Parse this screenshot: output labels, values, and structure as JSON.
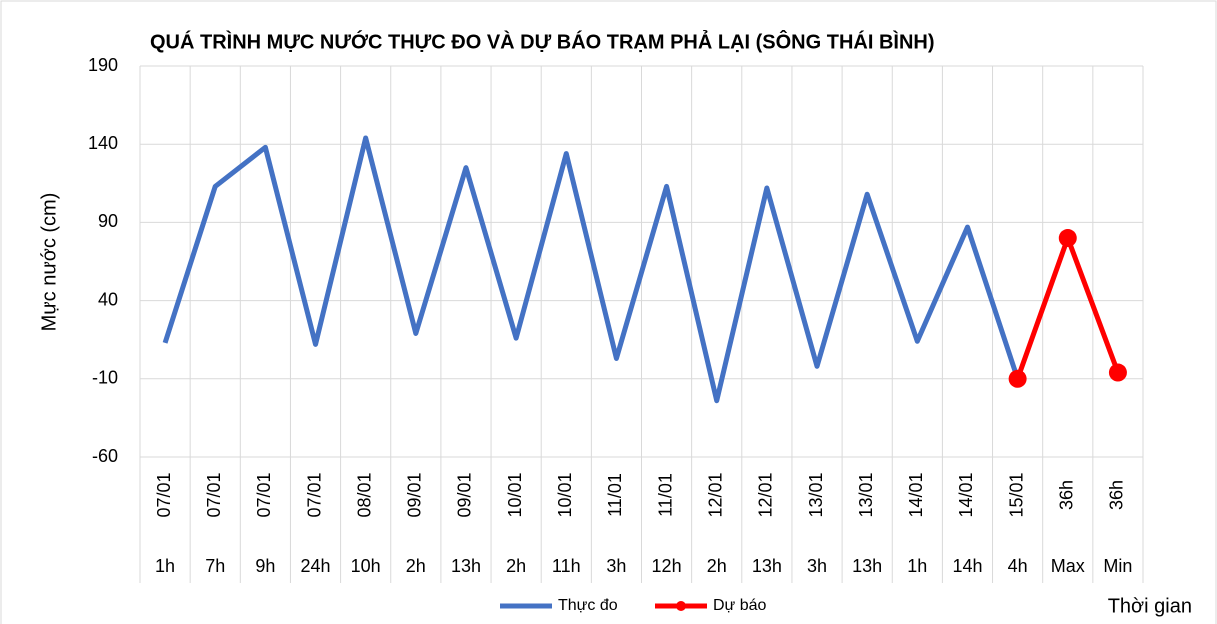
{
  "chart_data": {
    "type": "line",
    "title": "QUÁ TRÌNH MỰC NƯỚC THỰC ĐO VÀ DỰ BÁO TRẠM PHẢ LẠI (SÔNG THÁI BÌNH)",
    "y_label": "Mực nước (cm)",
    "x_label": "Thời gian",
    "categories": [
      {
        "date": "07/01",
        "time": "1h"
      },
      {
        "date": "07/01",
        "time": "7h"
      },
      {
        "date": "07/01",
        "time": "9h"
      },
      {
        "date": "07/01",
        "time": "24h"
      },
      {
        "date": "08/01",
        "time": "10h"
      },
      {
        "date": "09/01",
        "time": "2h"
      },
      {
        "date": "09/01",
        "time": "13h"
      },
      {
        "date": "10/01",
        "time": "2h"
      },
      {
        "date": "10/01",
        "time": "11h"
      },
      {
        "date": "11/01",
        "time": "3h"
      },
      {
        "date": "11/01",
        "time": "12h"
      },
      {
        "date": "12/01",
        "time": "2h"
      },
      {
        "date": "12/01",
        "time": "13h"
      },
      {
        "date": "13/01",
        "time": "3h"
      },
      {
        "date": "13/01",
        "time": "13h"
      },
      {
        "date": "14/01",
        "time": "1h"
      },
      {
        "date": "14/01",
        "time": "14h"
      },
      {
        "date": "15/01",
        "time": "4h"
      },
      {
        "date": "36h",
        "time": "Max"
      },
      {
        "date": "36h",
        "time": "Min"
      }
    ],
    "series": [
      {
        "name": "Thực đo",
        "color": "#4472c4",
        "marker": false,
        "values": [
          13,
          113,
          138,
          12,
          144,
          19,
          125,
          16,
          134,
          3,
          113,
          -24,
          112,
          -2,
          108,
          14,
          87,
          -10,
          null,
          null
        ]
      },
      {
        "name": "Dự báo",
        "color": "#ff0000",
        "marker": true,
        "values": [
          null,
          null,
          null,
          null,
          null,
          null,
          null,
          null,
          null,
          null,
          null,
          null,
          null,
          null,
          null,
          null,
          null,
          -10,
          80,
          -6
        ]
      }
    ],
    "ylim": [
      -60,
      190
    ],
    "yticks": [
      -60,
      -10,
      40,
      90,
      140,
      190
    ],
    "grid": true,
    "legend": "bottom"
  }
}
